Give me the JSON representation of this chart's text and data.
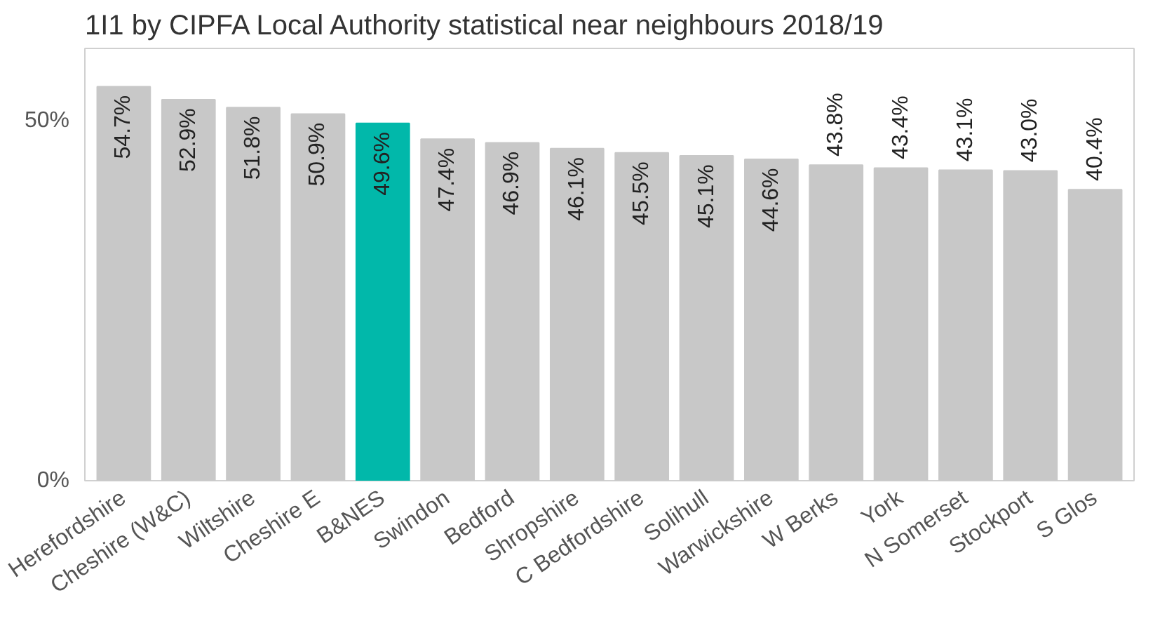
{
  "chart_data": {
    "type": "bar",
    "title": "1I1 by CIPFA Local Authority statistical near neighbours 2018/19",
    "categories": [
      "Herefordshire",
      "Cheshire (W&C)",
      "Wiltshire",
      "Cheshire E",
      "B&NES",
      "Swindon",
      "Bedford",
      "Shropshire",
      "C Bedfordshire",
      "Solihull",
      "Warwickshire",
      "W Berks",
      "York",
      "N Somerset",
      "Stockport",
      "S Glos"
    ],
    "values": [
      54.7,
      52.9,
      51.8,
      50.9,
      49.6,
      47.4,
      46.9,
      46.1,
      45.5,
      45.1,
      44.6,
      43.8,
      43.4,
      43.1,
      43.0,
      40.4
    ],
    "value_labels": [
      "54.7%",
      "52.9%",
      "51.8%",
      "50.9%",
      "49.6%",
      "47.4%",
      "46.9%",
      "46.1%",
      "45.5%",
      "45.1%",
      "44.6%",
      "43.8%",
      "43.4%",
      "43.1%",
      "43.0%",
      "40.4%"
    ],
    "colors": [
      "#c8c8c8",
      "#c8c8c8",
      "#c8c8c8",
      "#c8c8c8",
      "#01b8aa",
      "#c8c8c8",
      "#c8c8c8",
      "#c8c8c8",
      "#c8c8c8",
      "#c8c8c8",
      "#c8c8c8",
      "#c8c8c8",
      "#c8c8c8",
      "#c8c8c8",
      "#c8c8c8",
      "#c8c8c8"
    ],
    "yticks": [
      {
        "value": 0,
        "label": "0%"
      },
      {
        "value": 50,
        "label": "50%"
      }
    ],
    "ylim": [
      0,
      60
    ],
    "grid": false
  }
}
